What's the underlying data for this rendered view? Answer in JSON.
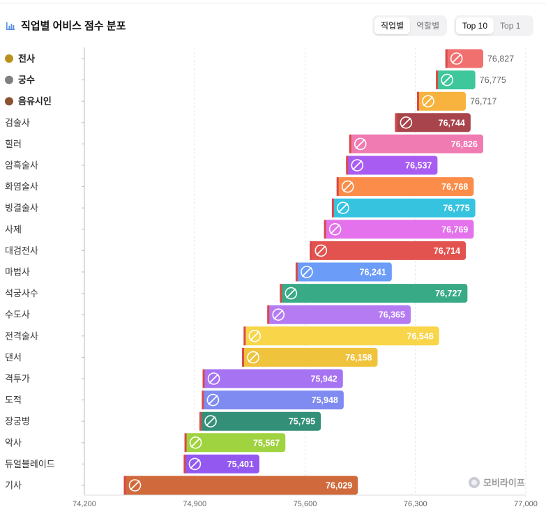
{
  "header": {
    "title": "직업별 어비스 점수 분포",
    "group_tabs": [
      {
        "label": "직업별",
        "active": true
      },
      {
        "label": "역할별",
        "active": false
      }
    ],
    "rank_tabs": [
      {
        "label": "Top 10",
        "active": true
      },
      {
        "label": "Top 1",
        "active": false
      }
    ]
  },
  "watermark": {
    "text": "모비라이프"
  },
  "chart_data": {
    "type": "bar",
    "orientation": "horizontal",
    "title": "직업별 어비스 점수 분포",
    "xlim": [
      74200,
      77000
    ],
    "x_ticks": [
      "74,200",
      "74,900",
      "75,600",
      "76,300",
      "77,000"
    ],
    "grid": true,
    "series_note": "floating bars: start = lower score bound, end = upper score bound; label = average score",
    "items": [
      {
        "label": "전사",
        "medal": "gold",
        "icon": "shield-icon",
        "color": "#f07070",
        "start": 76490,
        "end": 76730,
        "value_label": "76,827",
        "label_inside": false
      },
      {
        "label": "궁수",
        "medal": "silver",
        "icon": "bow-icon",
        "color": "#3ec79a",
        "start": 76430,
        "end": 76680,
        "value_label": "76,775",
        "label_inside": false
      },
      {
        "label": "음유시인",
        "medal": "bronze",
        "icon": "harp-icon",
        "color": "#f7b33e",
        "start": 76310,
        "end": 76620,
        "value_label": "76,717",
        "label_inside": false
      },
      {
        "label": "검술사",
        "medal": "",
        "icon": "sword-icon",
        "color": "#a8444b",
        "start": 76170,
        "end": 76650,
        "value_label": "76,744",
        "label_inside": true
      },
      {
        "label": "힐러",
        "medal": "",
        "icon": "staff-icon",
        "color": "#f07ab2",
        "start": 75880,
        "end": 76730,
        "value_label": "76,826",
        "label_inside": true
      },
      {
        "label": "암흑술사",
        "medal": "",
        "icon": "dark-orb-icon",
        "color": "#a95cf2",
        "start": 75860,
        "end": 76440,
        "value_label": "76,537",
        "label_inside": true
      },
      {
        "label": "화염술사",
        "medal": "",
        "icon": "flame-icon",
        "color": "#fb8c4a",
        "start": 75800,
        "end": 76670,
        "value_label": "76,768",
        "label_inside": true
      },
      {
        "label": "빙결술사",
        "medal": "",
        "icon": "snowflake-icon",
        "color": "#36c3e0",
        "start": 75770,
        "end": 76680,
        "value_label": "76,775",
        "label_inside": true
      },
      {
        "label": "사제",
        "medal": "",
        "icon": "prayer-icon",
        "color": "#e372ec",
        "start": 75720,
        "end": 76670,
        "value_label": "76,769",
        "label_inside": true
      },
      {
        "label": "대검전사",
        "medal": "",
        "icon": "greatsword-icon",
        "color": "#e2534f",
        "start": 75630,
        "end": 76620,
        "value_label": "76,714",
        "label_inside": true
      },
      {
        "label": "마법사",
        "medal": "",
        "icon": "wand-icon",
        "color": "#6b9cf7",
        "start": 75540,
        "end": 76150,
        "value_label": "76,241",
        "label_inside": true
      },
      {
        "label": "석궁사수",
        "medal": "",
        "icon": "crossbow-icon",
        "color": "#38aa85",
        "start": 75440,
        "end": 76630,
        "value_label": "76,727",
        "label_inside": true
      },
      {
        "label": "수도사",
        "medal": "",
        "icon": "fist-icon",
        "color": "#b47bf2",
        "start": 75360,
        "end": 76270,
        "value_label": "76,365",
        "label_inside": true
      },
      {
        "label": "전격술사",
        "medal": "",
        "icon": "lightning-icon",
        "color": "#f8d549",
        "start": 75210,
        "end": 76450,
        "value_label": "76,548",
        "label_inside": true
      },
      {
        "label": "댄서",
        "medal": "",
        "icon": "fan-icon",
        "color": "#efc33c",
        "start": 75200,
        "end": 76060,
        "value_label": "76,158",
        "label_inside": true
      },
      {
        "label": "격투가",
        "medal": "",
        "icon": "gauntlet-icon",
        "color": "#a673f2",
        "start": 74950,
        "end": 75840,
        "value_label": "75,942",
        "label_inside": true
      },
      {
        "label": "도적",
        "medal": "",
        "icon": "dagger-icon",
        "color": "#7f8bf0",
        "start": 74945,
        "end": 75845,
        "value_label": "75,948",
        "label_inside": true
      },
      {
        "label": "장궁병",
        "medal": "",
        "icon": "longbow-icon",
        "color": "#338f77",
        "start": 74930,
        "end": 75700,
        "value_label": "75,795",
        "label_inside": true
      },
      {
        "label": "악사",
        "medal": "",
        "icon": "lute-icon",
        "color": "#9fd33f",
        "start": 74835,
        "end": 75475,
        "value_label": "75,567",
        "label_inside": true
      },
      {
        "label": "듀얼블레이드",
        "medal": "",
        "icon": "dual-blades-icon",
        "color": "#9358f0",
        "start": 74830,
        "end": 75310,
        "value_label": "75,401",
        "label_inside": true
      },
      {
        "label": "기사",
        "medal": "",
        "icon": "axe-shield-icon",
        "color": "#d06a3c",
        "start": 74450,
        "end": 75935,
        "value_label": "76,029",
        "label_inside": true
      }
    ],
    "medal_colors": {
      "gold": "#b8911f",
      "silver": "#808080",
      "bronze": "#8a5230"
    }
  }
}
